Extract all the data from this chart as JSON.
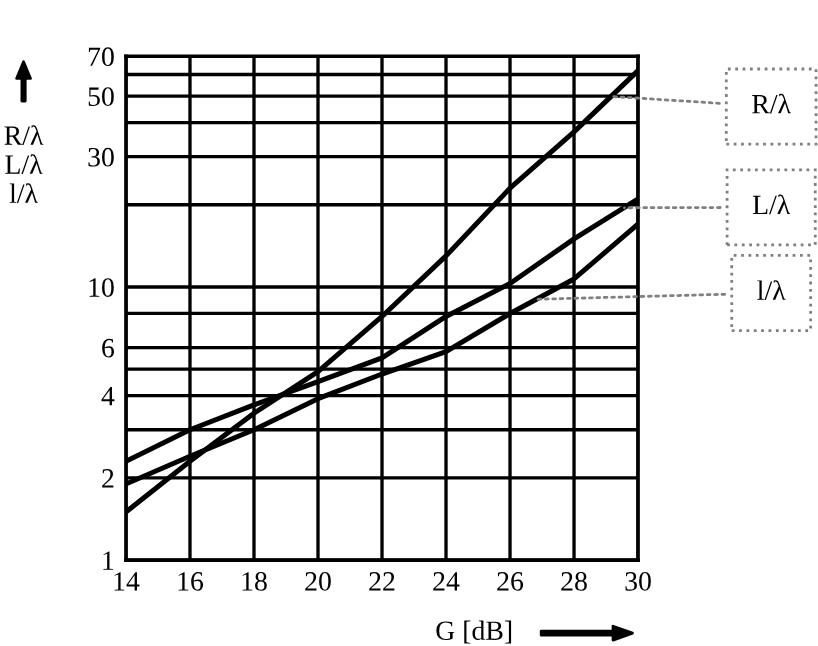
{
  "chart_data": {
    "type": "line",
    "xlabel": "G [dB]",
    "ylabel": "R/λ\nL/λ\nl/λ",
    "x": [
      14,
      16,
      18,
      20,
      22,
      24,
      26,
      28,
      30
    ],
    "series": [
      {
        "color": "#000000",
        "values": [
          1.5,
          2.3,
          3.45,
          4.9,
          7.8,
          13,
          23,
          37,
          62
        ]
      },
      {
        "color": "#000000",
        "values": [
          2.3,
          3.0,
          3.7,
          4.5,
          5.5,
          7.8,
          10.3,
          15,
          21
        ]
      },
      {
        "color": "#000000",
        "values": [
          1.9,
          2.4,
          3.0,
          3.9,
          4.8,
          5.8,
          8,
          10.7,
          17
        ]
      }
    ],
    "annotations": [
      {
        "text": "R/λ",
        "x": 29,
        "y": 50
      },
      {
        "text": "L/λ",
        "x": 29.4,
        "y": 19.5
      },
      {
        "text": "l/λ",
        "x": 26.6,
        "y": 9
      }
    ],
    "log": "y",
    "xlim": [
      14,
      30
    ],
    "ylim": [
      1,
      70
    ],
    "xticks": [
      14,
      16,
      18,
      20,
      22,
      24,
      26,
      28,
      30
    ],
    "yticks": [
      1,
      2,
      {
        "value": 3,
        "label": null
      },
      4,
      {
        "value": 5,
        "label": null
      },
      6,
      {
        "value": 8,
        "label": null
      },
      10,
      {
        "value": 20,
        "label": null
      },
      30,
      {
        "value": 40,
        "label": null
      },
      50,
      {
        "value": 60,
        "label": null
      },
      70
    ],
    "grid": true,
    "marker": "none",
    "line_style": "solid",
    "legend": false
  }
}
